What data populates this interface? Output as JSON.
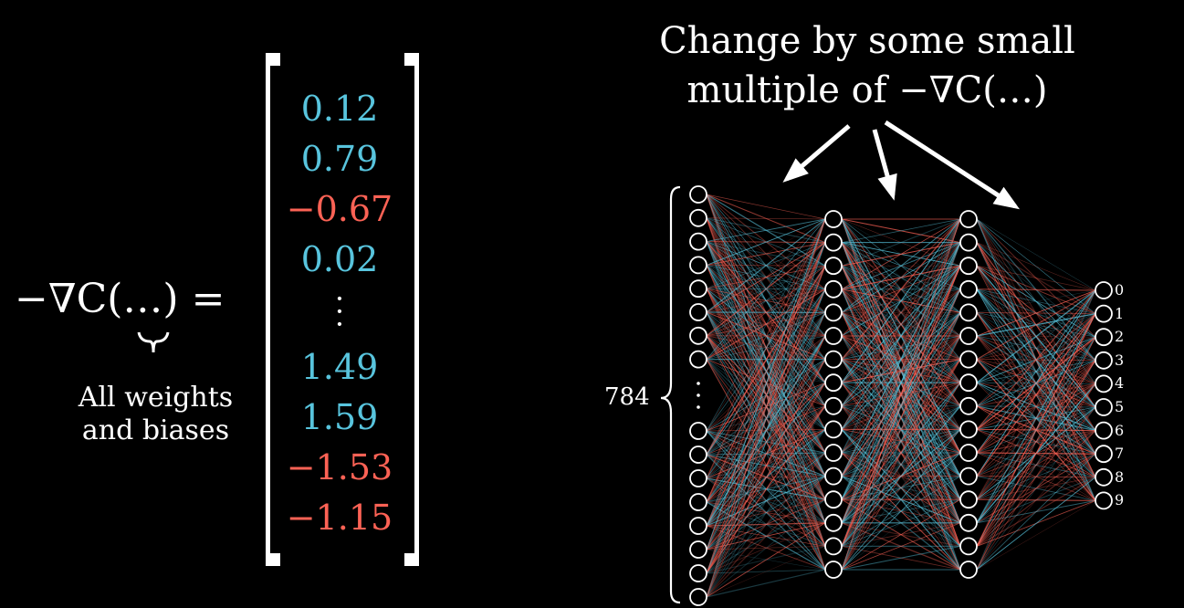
{
  "equation": {
    "lhs": "−∇C(…) =",
    "caption_line1": "All weights",
    "caption_line2": "and biases"
  },
  "gradient_vector": {
    "entries": [
      {
        "text": "0.12",
        "value": 0.12
      },
      {
        "text": "0.79",
        "value": 0.79
      },
      {
        "text": "−0.67",
        "value": -0.67
      },
      {
        "text": "0.02",
        "value": 0.02
      },
      {
        "text": "1.49",
        "value": 1.49
      },
      {
        "text": "1.59",
        "value": 1.59
      },
      {
        "text": "−1.53",
        "value": -1.53
      },
      {
        "text": "−1.15",
        "value": -1.15
      }
    ],
    "ellipsis_after_index": 3
  },
  "title": {
    "line1": "Change by some small",
    "line2": "multiple of −∇C(…)"
  },
  "network": {
    "input_label": "784",
    "output_labels": [
      "0",
      "1",
      "2",
      "3",
      "4",
      "5",
      "6",
      "7",
      "8",
      "9"
    ],
    "input_nodes_top": 8,
    "input_nodes_bottom": 8,
    "hidden_nodes": 16,
    "output_nodes": 10
  },
  "colors": {
    "positive": "#58c4dd",
    "negative": "#fc6255",
    "text": "#ffffff",
    "background": "#000000"
  }
}
